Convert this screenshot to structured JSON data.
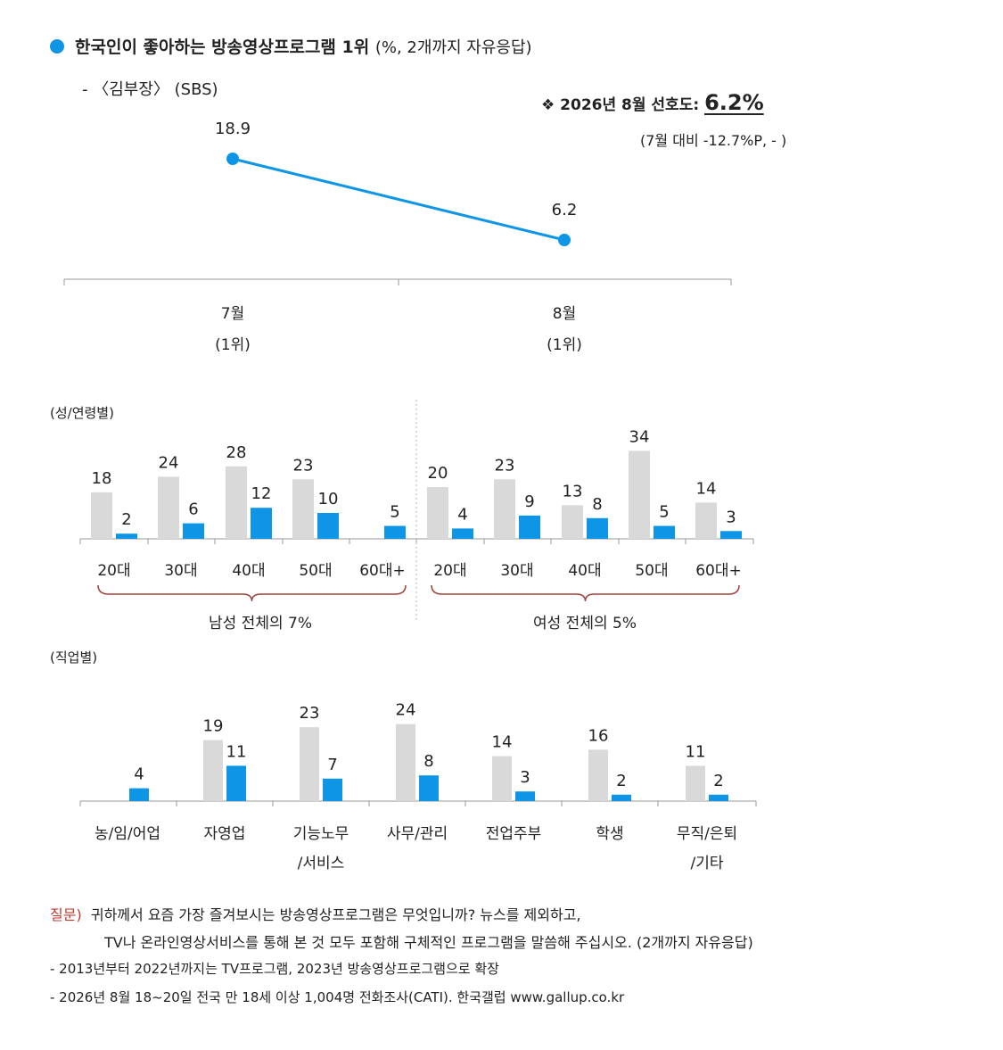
{
  "header": {
    "title": "한국인이 좋아하는 방송영상프로그램 1위",
    "title_note": "(%, 2개까지 자유응답)",
    "program": "- 〈김부장〉 (SBS)",
    "preference_label": "❖ 2026년 8월 선호도:",
    "preference_value": "6.2%",
    "preference_change": "(7월 대비 -12.7%P, - )"
  },
  "colors": {
    "accent": "#0e95e6",
    "gray": "#d9d9d9",
    "brace": "#a0403a",
    "question": "#c0392b"
  },
  "chart_data": [
    {
      "type": "line",
      "categories": [
        "7월",
        "8월"
      ],
      "sub_categories": [
        "(1위)",
        "(1위)"
      ],
      "values": [
        18.9,
        6.2
      ],
      "labels": [
        "18.9",
        "6.2"
      ]
    },
    {
      "type": "bar",
      "section_label": "(성/연령별)",
      "categories": [
        "20대",
        "30대",
        "40대",
        "50대",
        "60대+",
        "20대",
        "30대",
        "40대",
        "50대",
        "60대+"
      ],
      "groups": [
        {
          "label": "남성 전체의 7%",
          "range": [
            0,
            4
          ]
        },
        {
          "label": "여성 전체의 5%",
          "range": [
            5,
            9
          ]
        }
      ],
      "series": [
        {
          "values": [
            18,
            24,
            28,
            23,
            null,
            20,
            23,
            13,
            34,
            14
          ],
          "labels": [
            "18",
            "24",
            "28",
            "23",
            "",
            "20",
            "23",
            "13",
            "34",
            "14"
          ]
        },
        {
          "values": [
            2,
            6,
            12,
            10,
            5,
            4,
            9,
            8,
            5,
            3
          ],
          "labels": [
            "2",
            "6",
            "12",
            "10",
            "5",
            "4",
            "9",
            "8",
            "5",
            "3"
          ]
        }
      ]
    },
    {
      "type": "bar",
      "section_label": "(직업별)",
      "categories": [
        "농/임/어업",
        "자영업",
        "기능노무",
        "사무/관리",
        "전업주부",
        "학생",
        "무직/은퇴"
      ],
      "categories_line2": [
        "",
        "",
        "/서비스",
        "",
        "",
        "",
        "/기타"
      ],
      "series": [
        {
          "values": [
            null,
            19,
            23,
            24,
            14,
            16,
            11
          ],
          "labels": [
            "",
            "19",
            "23",
            "24",
            "14",
            "16",
            "11"
          ]
        },
        {
          "values": [
            4,
            11,
            7,
            8,
            3,
            2,
            2
          ],
          "labels": [
            "4",
            "11",
            "7",
            "8",
            "3",
            "2",
            "2"
          ]
        }
      ]
    }
  ],
  "question": {
    "prefix": "질문)",
    "line1": "귀하께서 요즘 가장 즐겨보시는 방송영상프로그램은 무엇입니까? 뉴스를 제외하고,",
    "line2": "TV나 온라인영상서비스를 통해 본 것 모두 포함해 구체적인 프로그램을 말씀해 주십시오. (2개까지 자유응답)"
  },
  "footnotes": [
    "- 2013년부터 2022년까지는 TV프로그램, 2023년 방송영상프로그램으로 확장",
    "- 2026년 8월 18~20일 전국 만 18세 이상 1,004명 전화조사(CATI). 한국갤럽 www.gallup.co.kr"
  ]
}
